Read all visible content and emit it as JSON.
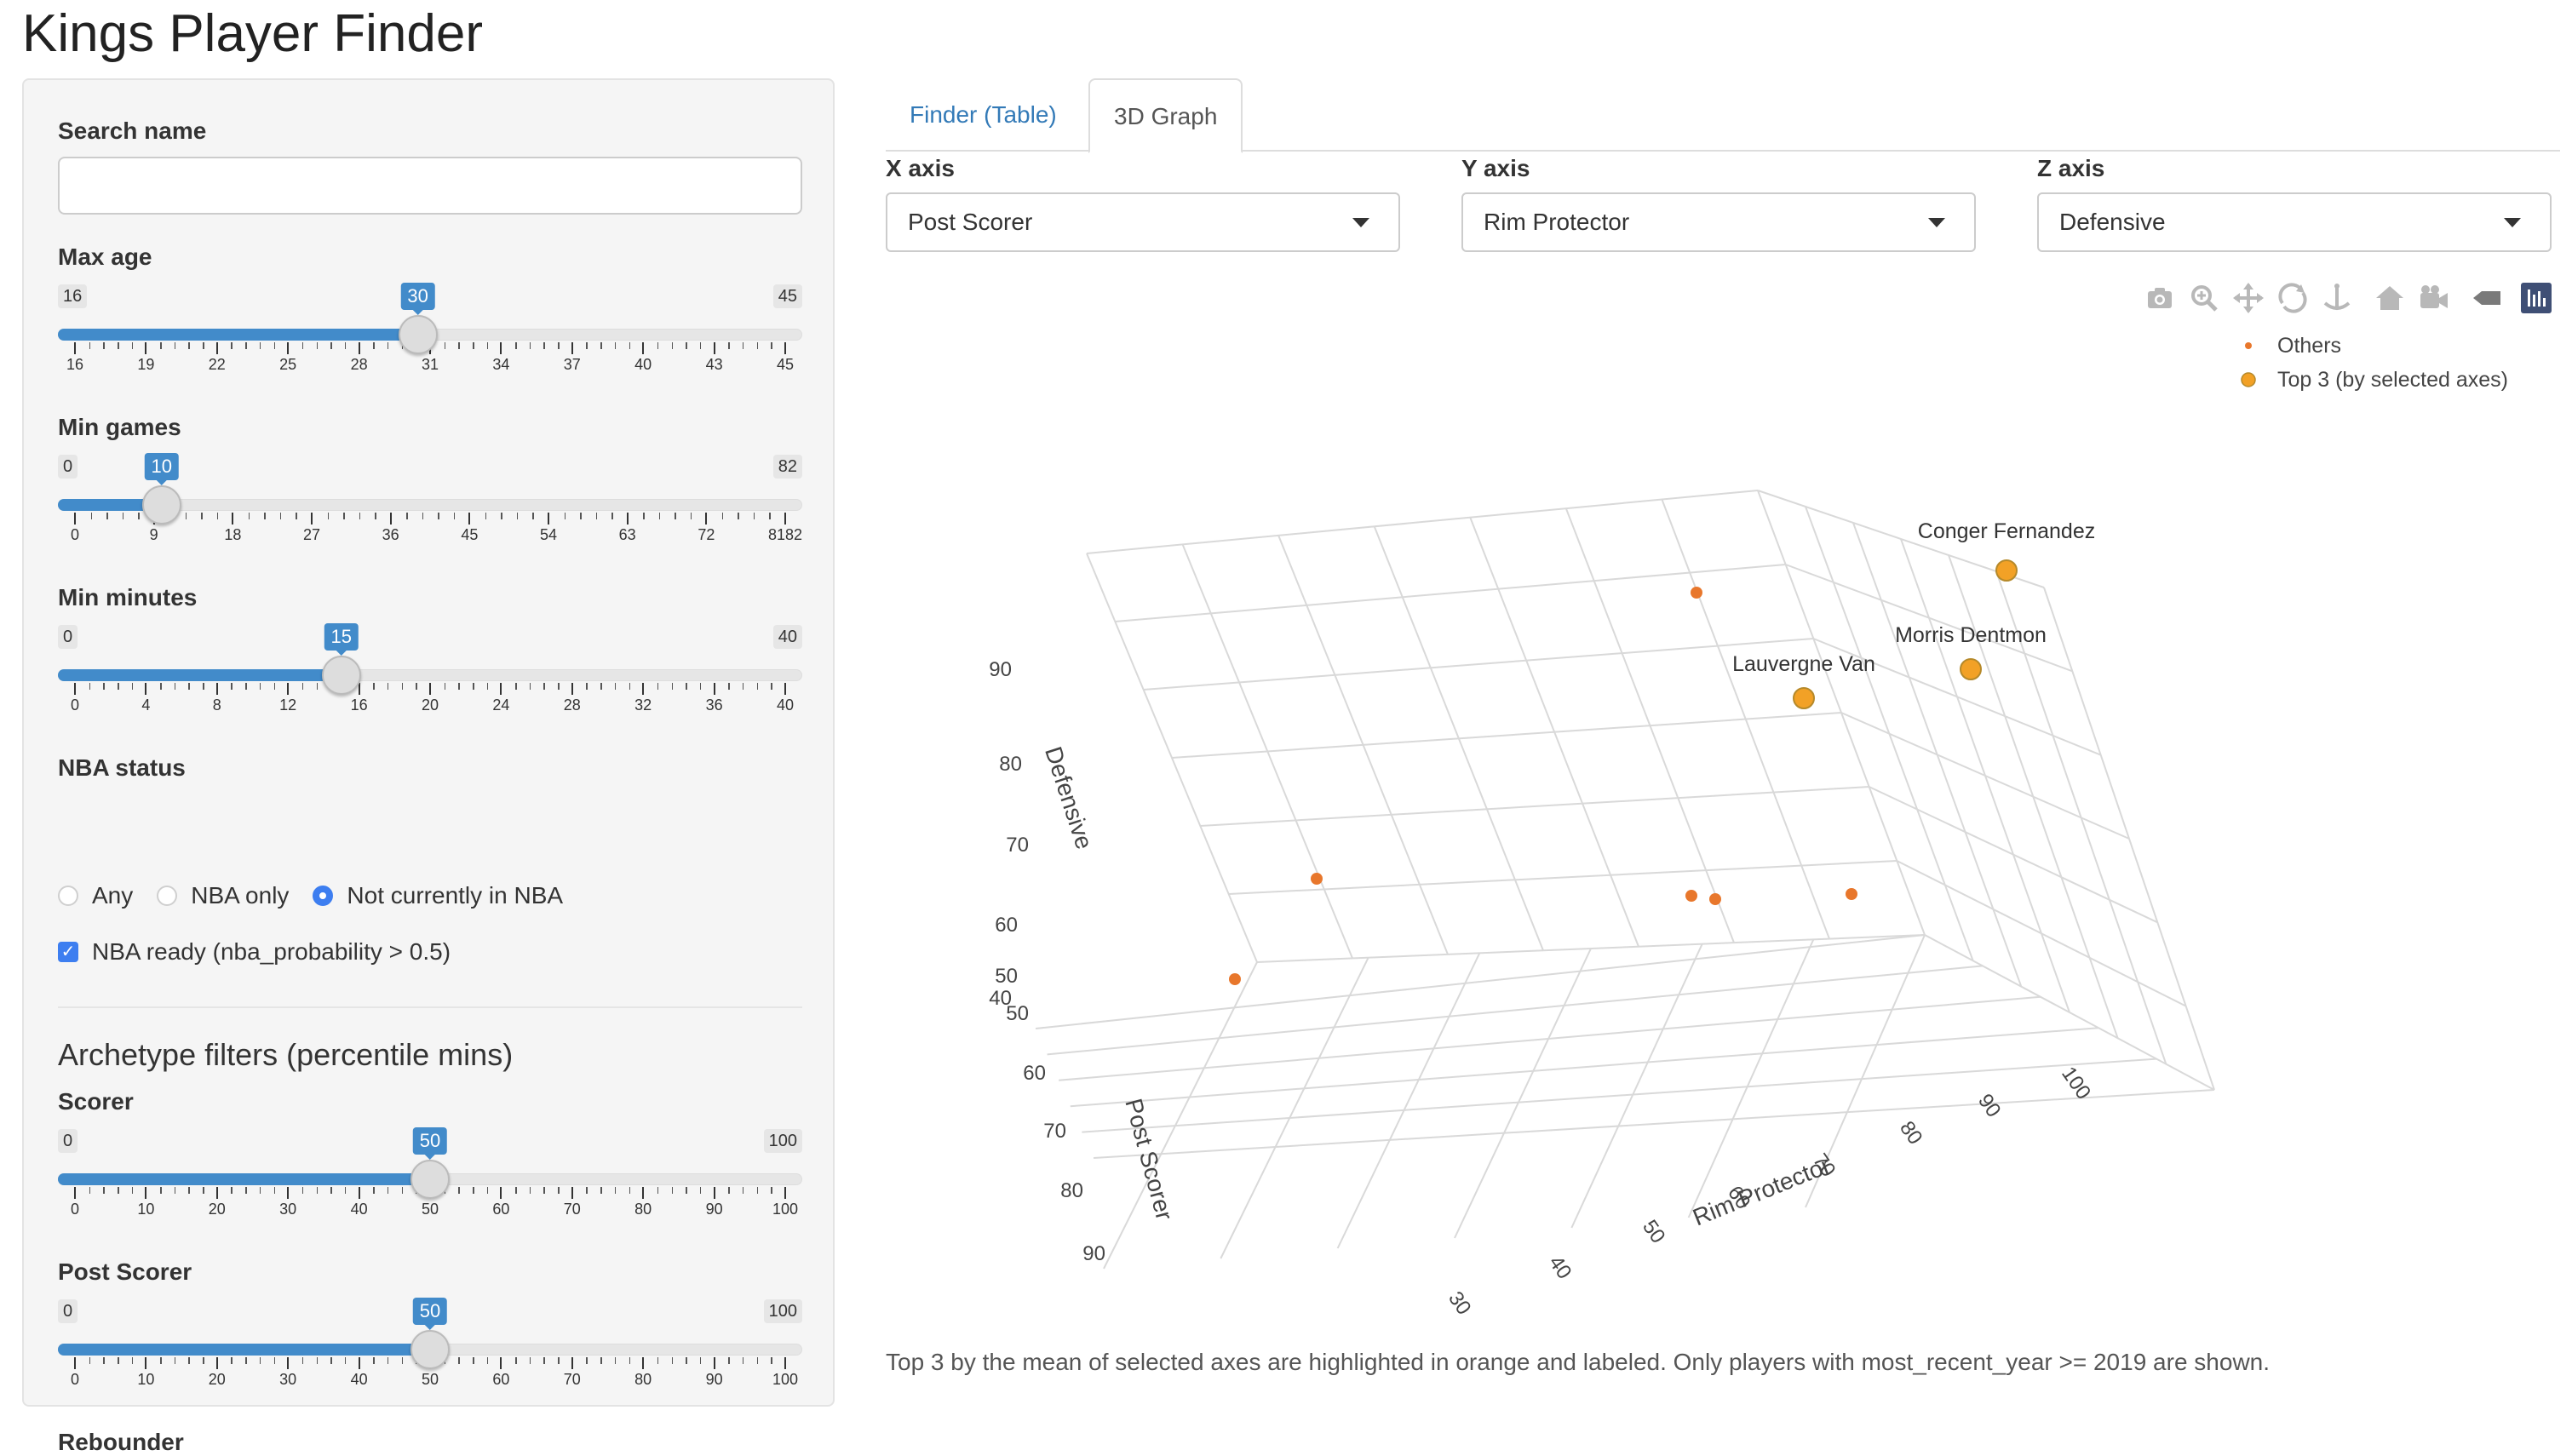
{
  "app": {
    "title": "Kings Player Finder"
  },
  "sidebar": {
    "search": {
      "label": "Search name",
      "value": "",
      "placeholder": ""
    },
    "sliders": [
      {
        "label": "Max age",
        "min": 16,
        "max": 45,
        "value": 30,
        "ticks": [
          "16",
          "19",
          "22",
          "25",
          "28",
          "31",
          "34",
          "37",
          "40",
          "43",
          "45"
        ]
      },
      {
        "label": "Min games",
        "min": 0,
        "max": 82,
        "value": 10,
        "ticks": [
          "0",
          "9",
          "18",
          "27",
          "36",
          "45",
          "54",
          "63",
          "72",
          "8182"
        ]
      },
      {
        "label": "Min minutes",
        "min": 0,
        "max": 40,
        "value": 15,
        "ticks": [
          "0",
          "4",
          "8",
          "12",
          "16",
          "20",
          "24",
          "28",
          "32",
          "36",
          "40"
        ]
      }
    ],
    "nba_status": {
      "label": "NBA status",
      "options": [
        "Any",
        "NBA only",
        "Not currently in NBA"
      ],
      "selected": "Not currently in NBA"
    },
    "nba_ready": {
      "label": "NBA ready (nba_probability > 0.5)",
      "checked": true
    },
    "archetype_title": "Archetype filters (percentile mins)",
    "archetype_sliders": [
      {
        "label": "Scorer",
        "min": 0,
        "max": 100,
        "value": 50,
        "ticks": [
          "0",
          "10",
          "20",
          "30",
          "40",
          "50",
          "60",
          "70",
          "80",
          "90",
          "100"
        ]
      },
      {
        "label": "Post Scorer",
        "min": 0,
        "max": 100,
        "value": 50,
        "ticks": [
          "0",
          "10",
          "20",
          "30",
          "40",
          "50",
          "60",
          "70",
          "80",
          "90",
          "100"
        ]
      }
    ],
    "next_label": "Rebounder"
  },
  "tabs": [
    {
      "label": "Finder (Table)",
      "active": false
    },
    {
      "label": "3D Graph",
      "active": true
    }
  ],
  "axes_selectors": {
    "x": {
      "label": "X axis",
      "value": "Post Scorer"
    },
    "y": {
      "label": "Y axis",
      "value": "Rim Protector"
    },
    "z": {
      "label": "Z axis",
      "value": "Defensive"
    }
  },
  "modebar_icons": [
    "camera-icon",
    "zoom-icon",
    "pan-icon",
    "orbit-icon",
    "turntable-icon",
    "home-icon",
    "camera-reset-icon",
    "hover-toggle-icon",
    "plotly-logo-icon"
  ],
  "chart_data": {
    "type": "scatter3d",
    "xlabel": "Post Scorer",
    "ylabel": "Rim Protector",
    "zlabel": "Defensive",
    "x_ticks": [
      "50",
      "60",
      "70",
      "80",
      "90"
    ],
    "y_ticks": [
      "30",
      "40",
      "50",
      "60",
      "70",
      "80",
      "90",
      "100"
    ],
    "z_ticks": [
      "40",
      "50",
      "60",
      "70",
      "80",
      "90"
    ],
    "legend": {
      "placement": "top-right",
      "entries": [
        "Others",
        "Top 3 (by selected axes)"
      ]
    },
    "colors": {
      "others": "#e8772c",
      "top3": "#f2a126",
      "top3_edge": "#b5892a"
    },
    "top3_labels": [
      "Conger Fernandez",
      "Morris Dentmon",
      "Lauvergne Van"
    ]
  },
  "footnote": "Top 3 by the mean of selected axes are highlighted in orange and labeled. Only players with most_recent_year >= 2019 are shown."
}
